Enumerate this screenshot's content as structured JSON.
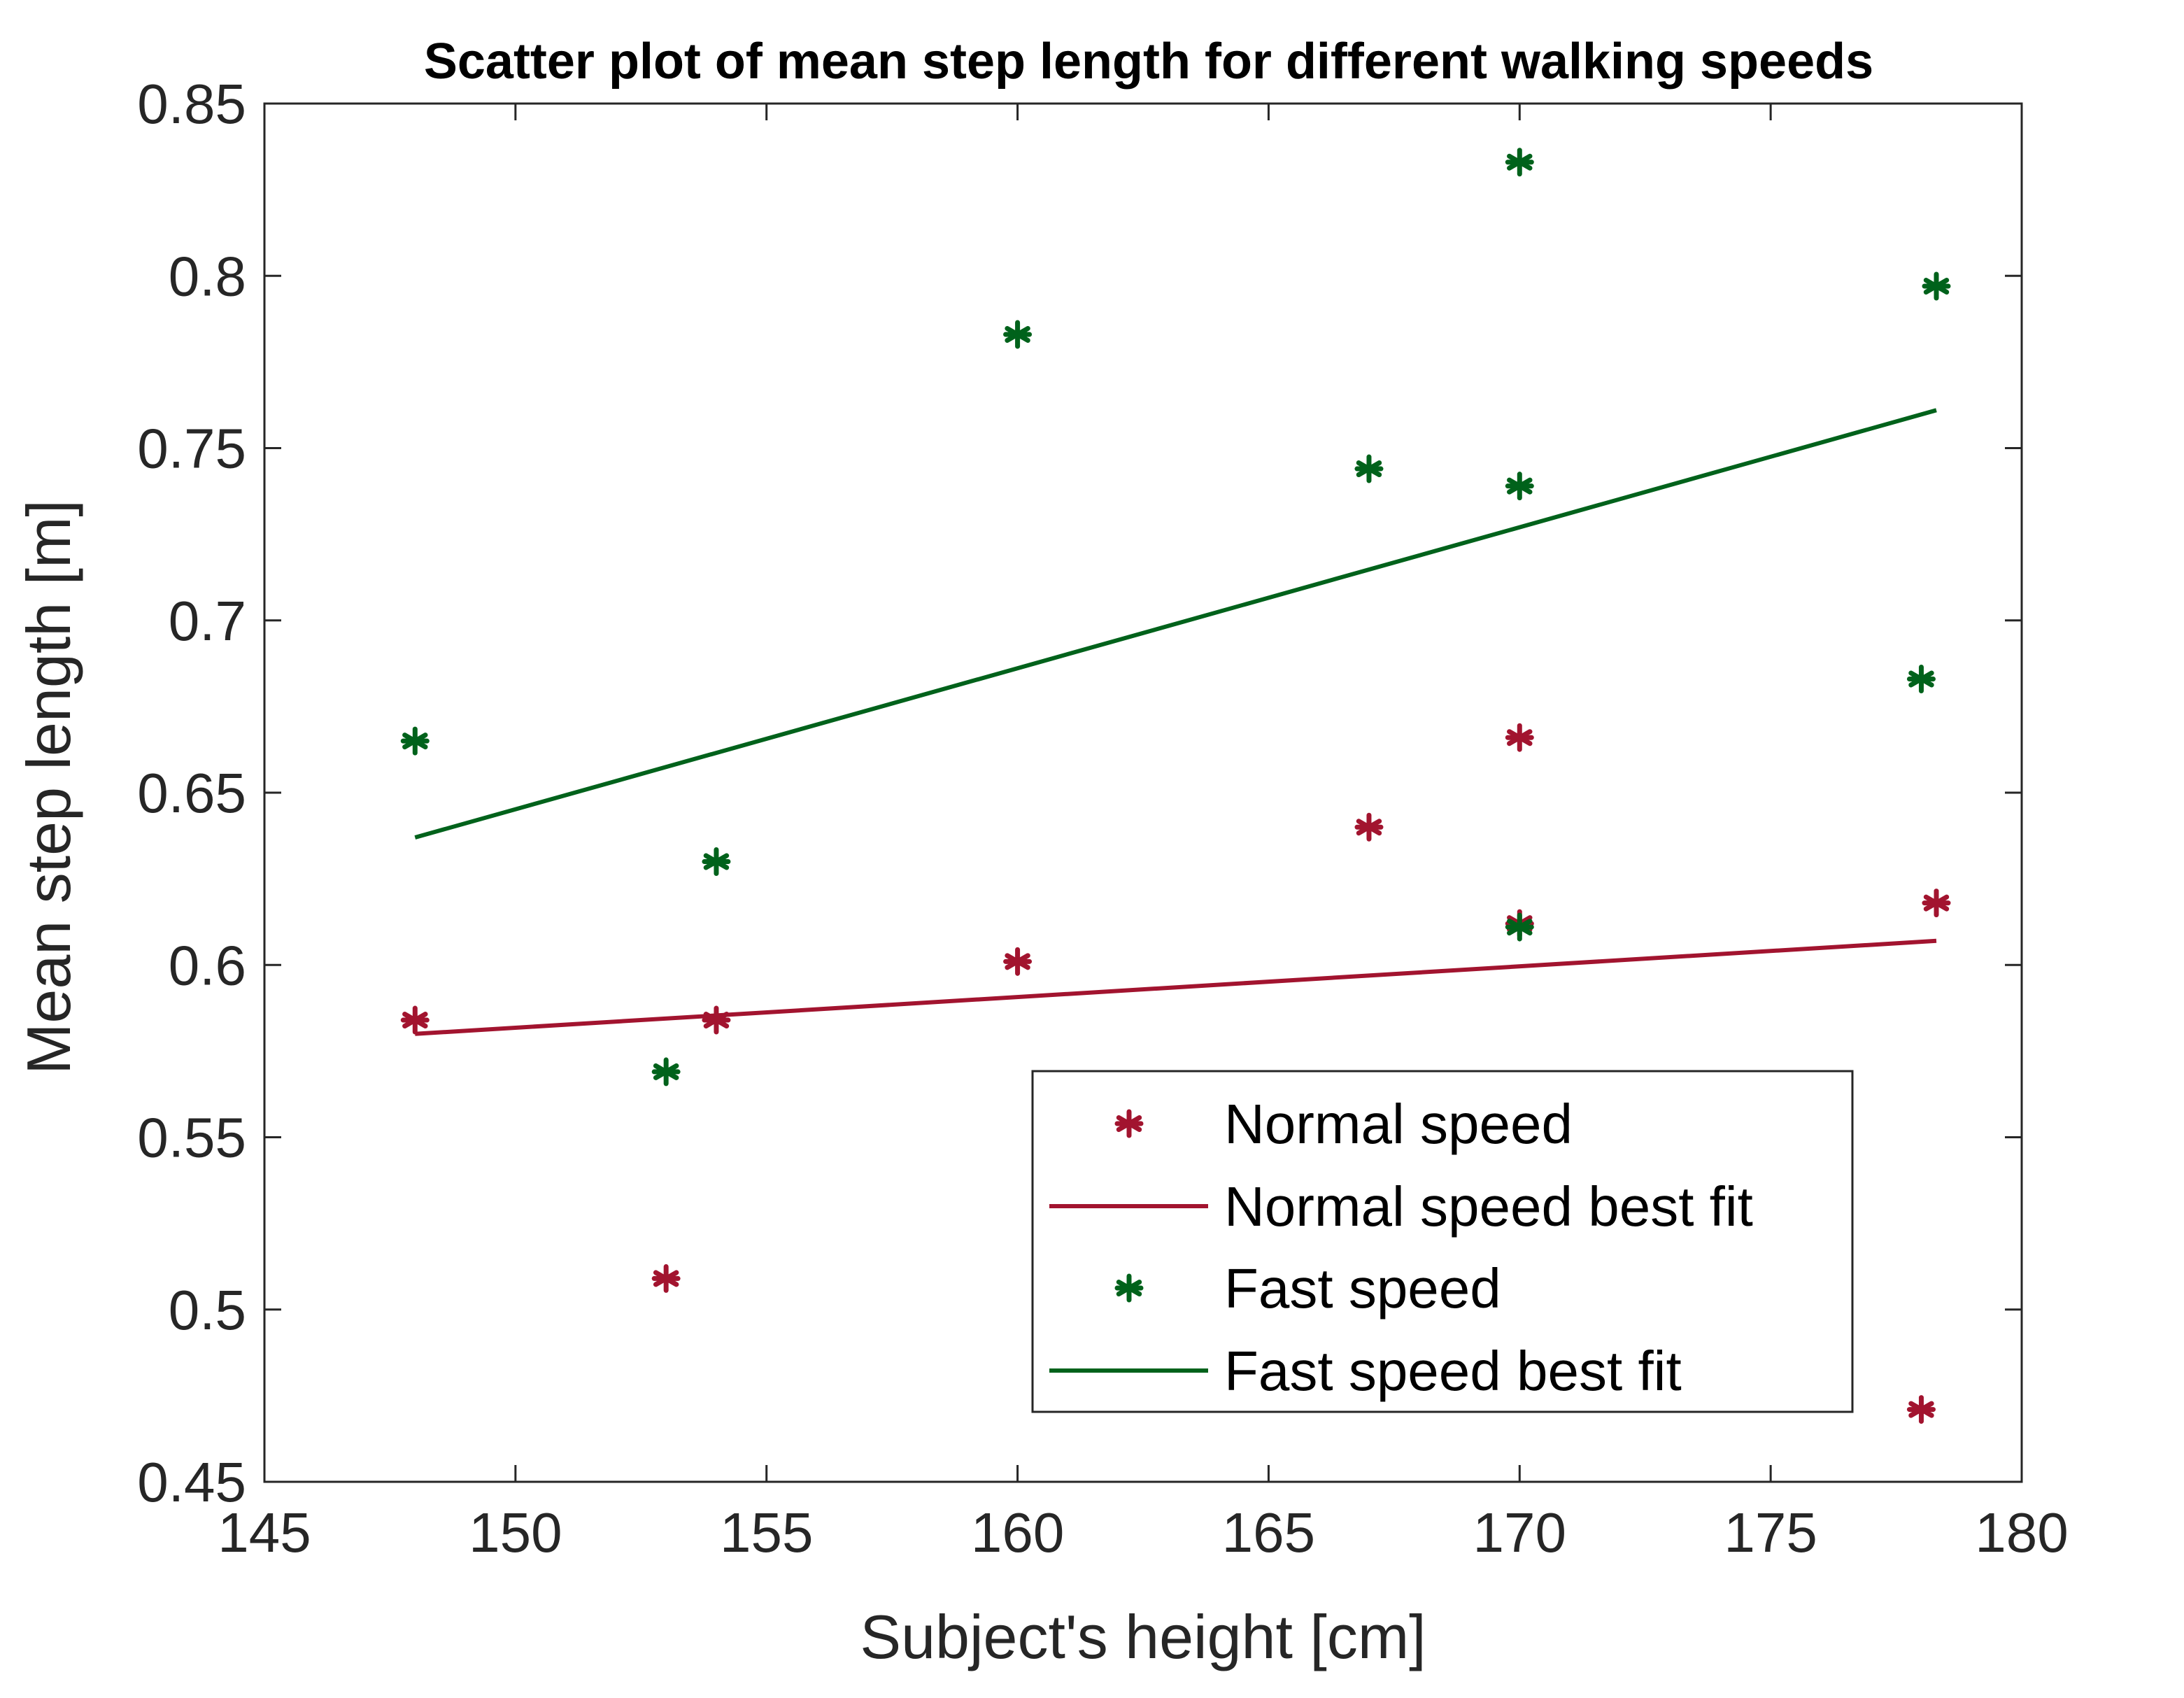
{
  "chart_data": {
    "type": "scatter",
    "title": "Scatter plot of mean step length for different walking speeds",
    "xlabel": "Subject's height [cm]",
    "ylabel": "Mean step length [m]",
    "xlim": [
      145,
      180
    ],
    "ylim": [
      0.45,
      0.85
    ],
    "xticks": [
      145,
      150,
      155,
      160,
      165,
      170,
      175,
      180
    ],
    "xtick_labels": [
      "145",
      "150",
      "155",
      "160",
      "165",
      "170",
      "175",
      "180"
    ],
    "yticks": [
      0.45,
      0.5,
      0.55,
      0.6,
      0.65,
      0.7,
      0.75,
      0.8,
      0.85
    ],
    "ytick_labels": [
      "0.45",
      "0.5",
      "0.55",
      "0.6",
      "0.65",
      "0.7",
      "0.75",
      "0.8",
      "0.85"
    ],
    "grid": false,
    "legend_position": "bottom-right",
    "series": [
      {
        "name": "Normal speed",
        "kind": "scatter",
        "marker": "asterisk",
        "color": "#A2142F",
        "x": [
          148,
          153,
          154,
          160,
          167,
          170,
          170,
          178,
          178.3
        ],
        "y": [
          0.584,
          0.509,
          0.584,
          0.601,
          0.64,
          0.666,
          0.612,
          0.471,
          0.618
        ]
      },
      {
        "name": "Normal speed best fit",
        "kind": "line",
        "color": "#A2142F",
        "x": [
          148,
          178.3
        ],
        "y": [
          0.58,
          0.607
        ]
      },
      {
        "name": "Fast speed",
        "kind": "scatter",
        "marker": "asterisk",
        "color": "#00621B",
        "x": [
          148,
          153,
          154,
          160,
          167,
          170,
          170,
          170,
          178,
          178.3
        ],
        "y": [
          0.665,
          0.569,
          0.63,
          0.783,
          0.744,
          0.833,
          0.739,
          0.611,
          0.683,
          0.797
        ]
      },
      {
        "name": "Fast speed best fit",
        "kind": "line",
        "color": "#00621B",
        "x": [
          148,
          178.3
        ],
        "y": [
          0.637,
          0.761
        ]
      }
    ]
  }
}
